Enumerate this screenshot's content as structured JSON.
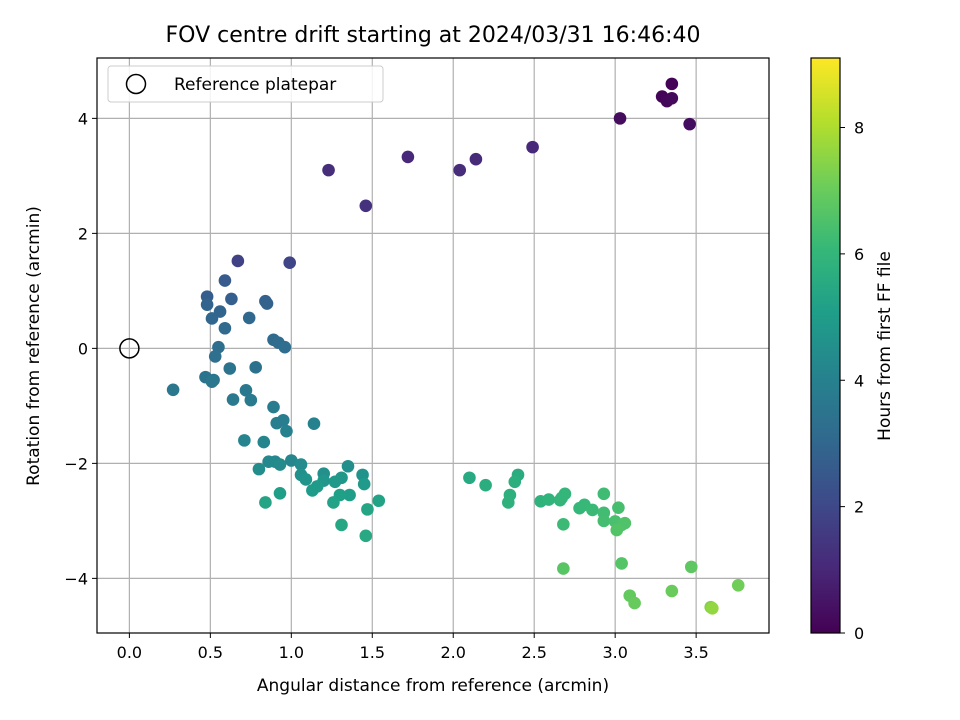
{
  "chart_data": {
    "type": "scatter",
    "title": "FOV centre drift starting at 2024/03/31 16:46:40",
    "xlabel": "Angular distance from reference (arcmin)",
    "ylabel": "Rotation from reference (arcmin)",
    "xlim": [
      -0.2,
      3.95
    ],
    "ylim": [
      -4.95,
      5.05
    ],
    "x_ticks": [
      0.0,
      0.5,
      1.0,
      1.5,
      2.0,
      2.5,
      3.0,
      3.5
    ],
    "x_tick_labels": [
      "0.0",
      "0.5",
      "1.0",
      "1.5",
      "2.0",
      "2.5",
      "3.0",
      "3.5"
    ],
    "y_ticks": [
      -4,
      -2,
      0,
      2,
      4
    ],
    "y_tick_labels": [
      "−4",
      "−2",
      "0",
      "2",
      "4"
    ],
    "grid": true,
    "legend": {
      "position": "top-left",
      "entries": [
        "Reference platepar"
      ]
    },
    "colorbar": {
      "label": "Hours from first FF file",
      "colormap": "viridis",
      "range": [
        0,
        9.1
      ],
      "ticks": [
        0,
        2,
        4,
        6,
        8
      ],
      "tick_labels": [
        "0",
        "2",
        "4",
        "6",
        "8"
      ]
    },
    "reference_point": {
      "x": 0.0,
      "y": 0.0
    },
    "points": [
      {
        "x": 3.35,
        "y": 4.6,
        "t": 0.05
      },
      {
        "x": 3.29,
        "y": 4.38,
        "t": 0.1
      },
      {
        "x": 3.32,
        "y": 4.3,
        "t": 0.15
      },
      {
        "x": 3.35,
        "y": 4.35,
        "t": 0.2
      },
      {
        "x": 3.03,
        "y": 4.0,
        "t": 0.25
      },
      {
        "x": 3.46,
        "y": 3.9,
        "t": 0.3
      },
      {
        "x": 2.49,
        "y": 3.5,
        "t": 1.0
      },
      {
        "x": 1.72,
        "y": 3.33,
        "t": 1.05
      },
      {
        "x": 2.14,
        "y": 3.29,
        "t": 1.1
      },
      {
        "x": 2.04,
        "y": 3.1,
        "t": 1.15
      },
      {
        "x": 1.23,
        "y": 3.1,
        "t": 1.2
      },
      {
        "x": 1.46,
        "y": 2.48,
        "t": 1.3
      },
      {
        "x": 0.67,
        "y": 1.52,
        "t": 1.8
      },
      {
        "x": 0.99,
        "y": 1.49,
        "t": 1.9
      },
      {
        "x": 0.59,
        "y": 1.18,
        "t": 2.6
      },
      {
        "x": 0.48,
        "y": 0.9,
        "t": 2.7
      },
      {
        "x": 0.63,
        "y": 0.86,
        "t": 2.75
      },
      {
        "x": 0.84,
        "y": 0.82,
        "t": 2.8
      },
      {
        "x": 0.85,
        "y": 0.78,
        "t": 2.85
      },
      {
        "x": 0.48,
        "y": 0.76,
        "t": 2.9
      },
      {
        "x": 0.56,
        "y": 0.64,
        "t": 2.95
      },
      {
        "x": 0.51,
        "y": 0.52,
        "t": 3.0
      },
      {
        "x": 0.74,
        "y": 0.53,
        "t": 3.05
      },
      {
        "x": 0.59,
        "y": 0.35,
        "t": 3.1
      },
      {
        "x": 0.89,
        "y": 0.15,
        "t": 3.15
      },
      {
        "x": 0.92,
        "y": 0.1,
        "t": 3.2
      },
      {
        "x": 0.96,
        "y": 0.02,
        "t": 3.25
      },
      {
        "x": 0.55,
        "y": 0.02,
        "t": 3.3
      },
      {
        "x": 0.53,
        "y": -0.14,
        "t": 3.35
      },
      {
        "x": 0.78,
        "y": -0.33,
        "t": 3.4
      },
      {
        "x": 0.62,
        "y": -0.35,
        "t": 3.45
      },
      {
        "x": 0.47,
        "y": -0.5,
        "t": 3.5
      },
      {
        "x": 0.52,
        "y": -0.55,
        "t": 3.55
      },
      {
        "x": 0.51,
        "y": -0.58,
        "t": 3.6
      },
      {
        "x": 0.27,
        "y": -0.72,
        "t": 3.6
      },
      {
        "x": 0.72,
        "y": -0.73,
        "t": 3.65
      },
      {
        "x": 0.64,
        "y": -0.89,
        "t": 3.7
      },
      {
        "x": 0.75,
        "y": -0.9,
        "t": 3.75
      },
      {
        "x": 0.89,
        "y": -1.02,
        "t": 3.8
      },
      {
        "x": 0.95,
        "y": -1.25,
        "t": 3.85
      },
      {
        "x": 0.91,
        "y": -1.3,
        "t": 3.9
      },
      {
        "x": 1.14,
        "y": -1.31,
        "t": 4.0
      },
      {
        "x": 0.97,
        "y": -1.44,
        "t": 4.0
      },
      {
        "x": 0.71,
        "y": -1.6,
        "t": 4.1
      },
      {
        "x": 0.83,
        "y": -1.63,
        "t": 4.15
      },
      {
        "x": 1.0,
        "y": -1.95,
        "t": 4.2
      },
      {
        "x": 0.86,
        "y": -1.97,
        "t": 4.25
      },
      {
        "x": 0.9,
        "y": -1.97,
        "t": 4.3
      },
      {
        "x": 0.93,
        "y": -2.02,
        "t": 4.35
      },
      {
        "x": 1.06,
        "y": -2.02,
        "t": 4.4
      },
      {
        "x": 0.8,
        "y": -2.1,
        "t": 4.45
      },
      {
        "x": 1.35,
        "y": -2.05,
        "t": 4.5
      },
      {
        "x": 1.2,
        "y": -2.18,
        "t": 4.55
      },
      {
        "x": 1.06,
        "y": -2.2,
        "t": 4.6
      },
      {
        "x": 1.44,
        "y": -2.2,
        "t": 4.65
      },
      {
        "x": 1.09,
        "y": -2.28,
        "t": 4.7
      },
      {
        "x": 1.2,
        "y": -2.3,
        "t": 4.75
      },
      {
        "x": 1.31,
        "y": -2.25,
        "t": 4.8
      },
      {
        "x": 1.27,
        "y": -2.32,
        "t": 4.85
      },
      {
        "x": 1.45,
        "y": -2.36,
        "t": 4.9
      },
      {
        "x": 1.16,
        "y": -2.4,
        "t": 4.95
      },
      {
        "x": 1.13,
        "y": -2.47,
        "t": 5.0
      },
      {
        "x": 1.36,
        "y": -2.55,
        "t": 5.05
      },
      {
        "x": 0.93,
        "y": -2.52,
        "t": 5.1
      },
      {
        "x": 1.3,
        "y": -2.55,
        "t": 5.15
      },
      {
        "x": 1.26,
        "y": -2.68,
        "t": 5.2
      },
      {
        "x": 1.54,
        "y": -2.65,
        "t": 5.25
      },
      {
        "x": 0.84,
        "y": -2.68,
        "t": 5.3
      },
      {
        "x": 1.47,
        "y": -2.8,
        "t": 5.35
      },
      {
        "x": 1.31,
        "y": -3.07,
        "t": 5.4
      },
      {
        "x": 1.46,
        "y": -3.26,
        "t": 5.45
      },
      {
        "x": 2.1,
        "y": -2.25,
        "t": 5.5
      },
      {
        "x": 2.4,
        "y": -2.2,
        "t": 5.6
      },
      {
        "x": 2.2,
        "y": -2.38,
        "t": 5.65
      },
      {
        "x": 2.38,
        "y": -2.32,
        "t": 5.7
      },
      {
        "x": 2.35,
        "y": -2.55,
        "t": 5.75
      },
      {
        "x": 2.34,
        "y": -2.68,
        "t": 5.8
      },
      {
        "x": 2.54,
        "y": -2.66,
        "t": 5.85
      },
      {
        "x": 2.59,
        "y": -2.63,
        "t": 5.9
      },
      {
        "x": 2.66,
        "y": -2.64,
        "t": 5.95
      },
      {
        "x": 2.69,
        "y": -2.53,
        "t": 6.0
      },
      {
        "x": 2.67,
        "y": -2.6,
        "t": 6.0
      },
      {
        "x": 2.78,
        "y": -2.78,
        "t": 6.05
      },
      {
        "x": 2.81,
        "y": -2.72,
        "t": 6.1
      },
      {
        "x": 2.86,
        "y": -2.81,
        "t": 6.15
      },
      {
        "x": 2.68,
        "y": -3.06,
        "t": 6.2
      },
      {
        "x": 2.93,
        "y": -2.53,
        "t": 6.25
      },
      {
        "x": 2.93,
        "y": -2.86,
        "t": 6.3
      },
      {
        "x": 2.93,
        "y": -3.0,
        "t": 6.35
      },
      {
        "x": 3.02,
        "y": -2.77,
        "t": 6.4
      },
      {
        "x": 3.0,
        "y": -3.01,
        "t": 6.45
      },
      {
        "x": 3.04,
        "y": -3.07,
        "t": 6.5
      },
      {
        "x": 3.06,
        "y": -3.04,
        "t": 6.55
      },
      {
        "x": 3.01,
        "y": -3.16,
        "t": 6.6
      },
      {
        "x": 3.04,
        "y": -3.74,
        "t": 6.65
      },
      {
        "x": 2.68,
        "y": -3.83,
        "t": 6.7
      },
      {
        "x": 3.47,
        "y": -3.8,
        "t": 6.8
      },
      {
        "x": 3.09,
        "y": -4.3,
        "t": 6.9
      },
      {
        "x": 3.12,
        "y": -4.43,
        "t": 6.95
      },
      {
        "x": 3.35,
        "y": -4.22,
        "t": 7.0
      },
      {
        "x": 3.76,
        "y": -4.12,
        "t": 7.1
      },
      {
        "x": 3.59,
        "y": -4.5,
        "t": 7.4
      },
      {
        "x": 3.6,
        "y": -4.52,
        "t": 7.6
      }
    ]
  }
}
